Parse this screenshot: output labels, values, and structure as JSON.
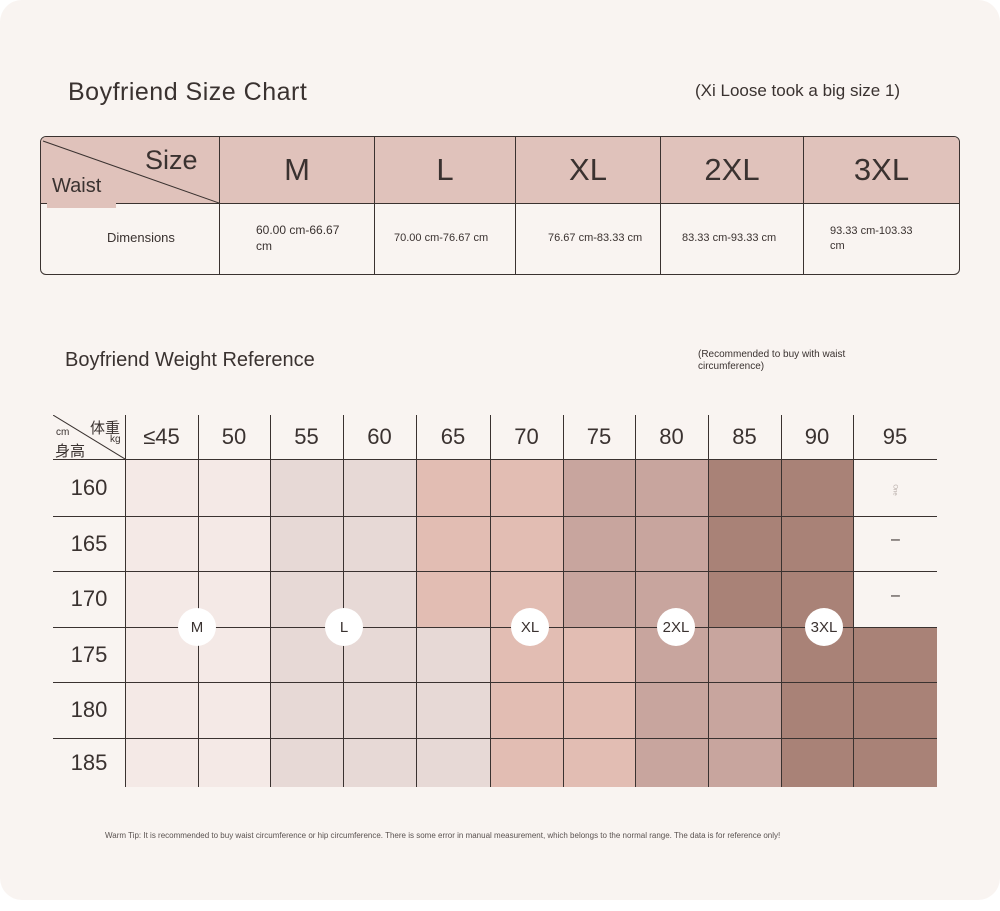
{
  "size_chart": {
    "title": "Boyfriend Size Chart",
    "note": "(Xi Loose took a big size 1)",
    "corner_top": "Size",
    "corner_bottom": "Waist",
    "row_label": "Dimensions",
    "sizes": [
      {
        "size": "M",
        "range": "60.00 cm-66.67 cm"
      },
      {
        "size": "L",
        "range": "70.00 cm-76.67 cm"
      },
      {
        "size": "XL",
        "range": "76.67 cm-83.33 cm"
      },
      {
        "size": "2XL",
        "range": "83.33 cm-93.33 cm"
      },
      {
        "size": "3XL",
        "range": "93.33 cm-103.33 cm"
      }
    ]
  },
  "weight_reference": {
    "title": "Boyfriend Weight Reference",
    "note": "(Recommended to buy with waist circumference)",
    "corner_weight": "体重",
    "corner_weight_unit": "kg",
    "corner_height_unit": "cm",
    "corner_height": "身高",
    "weights": [
      "≤45",
      "50",
      "55",
      "60",
      "65",
      "70",
      "75",
      "80",
      "85",
      "90",
      "95"
    ],
    "heights": [
      "160",
      "165",
      "170",
      "175",
      "180",
      "185"
    ],
    "badges": [
      "M",
      "L",
      "XL",
      "2XL",
      "3XL"
    ],
    "dash": "–",
    "tiny_mark": "One",
    "colors": {
      "M": "#f4e9e6",
      "L": "#e7d9d6",
      "XL": "#e2bdb3",
      "2XL": "#c8a59e",
      "3XL": "#a98277"
    }
  },
  "warm_tip": "Warm Tip: It is recommended to buy waist circumference or hip circumference. There is some error in manual measurement, which belongs to the normal range. The data is for reference only!"
}
